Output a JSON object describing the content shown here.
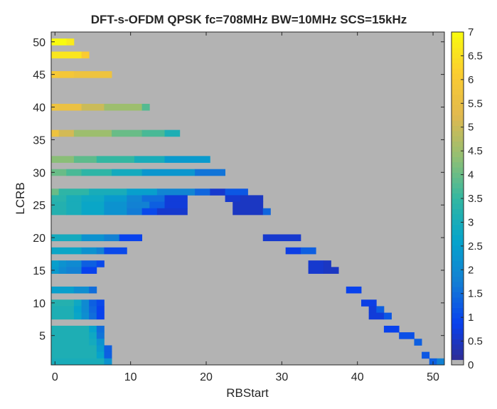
{
  "chart_data": {
    "type": "heatmap",
    "title": "DFT-s-OFDM QPSK fc=708MHz BW=10MHz SCS=15kHz",
    "xlabel": "RBStart",
    "ylabel": "LCRB",
    "xlim": [
      -0.5,
      51.5
    ],
    "ylim": [
      0.5,
      51.5
    ],
    "x_ticks": [
      0,
      10,
      20,
      30,
      40,
      50
    ],
    "y_ticks": [
      5,
      10,
      15,
      20,
      25,
      30,
      35,
      40,
      45,
      50
    ],
    "colorbar": {
      "range": [
        0,
        7
      ],
      "ticks": [
        0,
        0.5,
        1,
        1.5,
        2,
        2.5,
        3,
        3.5,
        4,
        4.5,
        5,
        5.5,
        6,
        6.5,
        7
      ],
      "colormap": "parula",
      "zero_color": "#b3b3b3"
    },
    "background_color": "#b3b3b3",
    "rows": [
      {
        "lcrb": 50,
        "cells": [
          [
            0,
            1,
            7.0
          ],
          [
            2,
            2,
            6.7
          ]
        ]
      },
      {
        "lcrb": 48,
        "cells": [
          [
            0,
            3,
            6.6
          ],
          [
            4,
            4,
            6.1
          ]
        ]
      },
      {
        "lcrb": 45,
        "cells": [
          [
            0,
            0,
            6.0
          ],
          [
            1,
            2,
            5.9
          ],
          [
            3,
            7,
            5.7
          ]
        ]
      },
      {
        "lcrb": 40,
        "cells": [
          [
            0,
            0,
            5.7
          ],
          [
            1,
            3,
            5.6
          ],
          [
            4,
            6,
            5.0
          ],
          [
            7,
            11,
            4.5
          ],
          [
            12,
            12,
            3.8
          ]
        ]
      },
      {
        "lcrb": 36,
        "cells": [
          [
            0,
            0,
            5.7
          ],
          [
            1,
            2,
            5.1
          ],
          [
            3,
            7,
            4.5
          ],
          [
            8,
            11,
            4.0
          ],
          [
            12,
            14,
            3.7
          ],
          [
            15,
            16,
            3.1
          ]
        ]
      },
      {
        "lcrb": 32,
        "cells": [
          [
            0,
            2,
            4.3
          ],
          [
            3,
            5,
            3.9
          ],
          [
            6,
            10,
            3.5
          ],
          [
            11,
            14,
            3.0
          ],
          [
            15,
            20,
            2.4
          ]
        ]
      },
      {
        "lcrb": 30,
        "cells": [
          [
            0,
            1,
            4.0
          ],
          [
            2,
            3,
            3.7
          ],
          [
            4,
            7,
            3.4
          ],
          [
            8,
            11,
            2.9
          ],
          [
            12,
            18,
            2.3
          ],
          [
            19,
            22,
            1.6
          ]
        ]
      },
      {
        "lcrb": 27,
        "cells": [
          [
            0,
            0,
            4.0
          ],
          [
            1,
            4,
            3.4
          ],
          [
            5,
            9,
            3.0
          ],
          [
            10,
            13,
            2.5
          ],
          [
            14,
            18,
            1.9
          ],
          [
            19,
            20,
            1.4
          ],
          [
            21,
            22,
            0.6
          ],
          [
            23,
            25,
            1.2
          ]
        ]
      },
      {
        "lcrb": 26,
        "cells": [
          [
            0,
            1,
            3.3
          ],
          [
            2,
            3,
            3.0
          ],
          [
            4,
            6,
            2.8
          ],
          [
            7,
            9,
            2.4
          ],
          [
            10,
            11,
            1.9
          ],
          [
            12,
            14,
            1.5
          ],
          [
            15,
            17,
            0.7
          ],
          [
            23,
            24,
            0.6
          ],
          [
            25,
            27,
            0.5
          ]
        ]
      },
      {
        "lcrb": 25,
        "cells": [
          [
            0,
            1,
            3.2
          ],
          [
            2,
            3,
            3.0
          ],
          [
            4,
            6,
            2.7
          ],
          [
            7,
            9,
            2.2
          ],
          [
            10,
            12,
            1.8
          ],
          [
            13,
            14,
            1.3
          ],
          [
            15,
            17,
            0.7
          ],
          [
            24,
            27,
            0.5
          ]
        ]
      },
      {
        "lcrb": 24,
        "cells": [
          [
            0,
            1,
            3.2
          ],
          [
            2,
            3,
            3.0
          ],
          [
            4,
            6,
            2.7
          ],
          [
            7,
            9,
            2.2
          ],
          [
            10,
            11,
            1.7
          ],
          [
            12,
            13,
            1.0
          ],
          [
            14,
            17,
            0.6
          ],
          [
            24,
            27,
            0.5
          ],
          [
            28,
            28,
            1.4
          ]
        ]
      },
      {
        "lcrb": 20,
        "cells": [
          [
            0,
            3,
            2.9
          ],
          [
            4,
            6,
            2.2
          ],
          [
            7,
            8,
            1.8
          ],
          [
            9,
            11,
            0.9
          ],
          [
            28,
            32,
            0.6
          ]
        ]
      },
      {
        "lcrb": 18,
        "cells": [
          [
            0,
            3,
            2.7
          ],
          [
            4,
            5,
            2.2
          ],
          [
            6,
            6,
            1.8
          ],
          [
            7,
            9,
            1.0
          ],
          [
            31,
            32,
            0.8
          ],
          [
            33,
            34,
            1.3
          ]
        ]
      },
      {
        "lcrb": 16,
        "cells": [
          [
            0,
            0,
            2.5
          ],
          [
            1,
            1,
            2.2
          ],
          [
            2,
            3,
            2.0
          ],
          [
            4,
            5,
            1.3
          ],
          [
            6,
            6,
            1.0
          ],
          [
            34,
            35,
            0.6
          ],
          [
            36,
            36,
            0.5
          ]
        ]
      },
      {
        "lcrb": 15,
        "cells": [
          [
            0,
            0,
            2.4
          ],
          [
            1,
            1,
            2.0
          ],
          [
            2,
            3,
            1.8
          ],
          [
            4,
            5,
            0.9
          ],
          [
            34,
            35,
            0.6
          ],
          [
            36,
            37,
            0.5
          ]
        ]
      },
      {
        "lcrb": 12,
        "cells": [
          [
            0,
            2,
            2.5
          ],
          [
            3,
            4,
            2.1
          ],
          [
            5,
            5,
            1.5
          ],
          [
            39,
            40,
            0.9
          ]
        ]
      },
      {
        "lcrb": 10,
        "cells": [
          [
            0,
            2,
            3.2
          ],
          [
            3,
            3,
            2.8
          ],
          [
            4,
            4,
            2.0
          ],
          [
            5,
            5,
            1.3
          ],
          [
            6,
            6,
            1.0
          ],
          [
            41,
            42,
            0.8
          ]
        ]
      },
      {
        "lcrb": 9,
        "cells": [
          [
            0,
            2,
            3.1
          ],
          [
            3,
            3,
            2.6
          ],
          [
            4,
            4,
            2.0
          ],
          [
            5,
            5,
            1.4
          ],
          [
            6,
            6,
            0.9
          ],
          [
            42,
            42,
            0.7
          ],
          [
            43,
            43,
            1.3
          ]
        ]
      },
      {
        "lcrb": 8,
        "cells": [
          [
            0,
            2,
            3.1
          ],
          [
            3,
            3,
            2.7
          ],
          [
            4,
            4,
            2.1
          ],
          [
            5,
            5,
            1.5
          ],
          [
            6,
            6,
            0.9
          ],
          [
            42,
            43,
            0.7
          ],
          [
            44,
            44,
            1.2
          ]
        ]
      },
      {
        "lcrb": 6,
        "cells": [
          [
            0,
            4,
            3.1
          ],
          [
            5,
            5,
            2.6
          ],
          [
            6,
            6,
            1.5
          ],
          [
            44,
            45,
            0.9
          ]
        ]
      },
      {
        "lcrb": 5,
        "cells": [
          [
            0,
            4,
            3.1
          ],
          [
            5,
            5,
            2.8
          ],
          [
            6,
            6,
            1.6
          ],
          [
            46,
            47,
            1.1
          ]
        ]
      },
      {
        "lcrb": 4,
        "cells": [
          [
            0,
            4,
            3.1
          ],
          [
            5,
            5,
            2.9
          ],
          [
            6,
            6,
            2.2
          ],
          [
            48,
            48,
            1.3
          ]
        ]
      },
      {
        "lcrb": 3,
        "cells": [
          [
            0,
            5,
            3.1
          ],
          [
            6,
            6,
            2.4
          ],
          [
            7,
            7,
            1.3
          ]
        ]
      },
      {
        "lcrb": 2,
        "cells": [
          [
            0,
            5,
            3.1
          ],
          [
            6,
            6,
            2.6
          ],
          [
            7,
            7,
            1.3
          ],
          [
            49,
            49,
            1.2
          ]
        ]
      },
      {
        "lcrb": 1,
        "cells": [
          [
            0,
            6,
            3.0
          ],
          [
            7,
            7,
            2.2
          ],
          [
            50,
            50,
            1.3
          ],
          [
            51,
            51,
            1.8
          ]
        ]
      }
    ]
  }
}
